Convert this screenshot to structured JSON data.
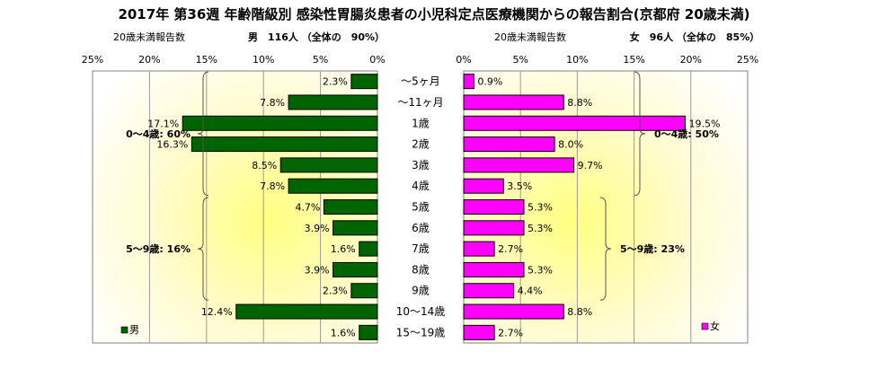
{
  "title": "2017年 第36週 年齢階級別 感染性胃腸炎患者の小児科定点医療機関からの報告割合(京都府 20歳未満)",
  "categories": [
    "～5ヶ月",
    "～11ヶ月",
    "1歳",
    "2歳",
    "3歳",
    "4歳",
    "5歳",
    "6歳",
    "7歳",
    "8歳",
    "9歳",
    "10～14歳",
    "15～19歳"
  ],
  "colors": {
    "male": "#006400",
    "female": "#ff00ff",
    "axis": "#808080"
  },
  "chart_data": {
    "type": "bar",
    "categories": [
      "～5ヶ月",
      "～11ヶ月",
      "1歳",
      "2歳",
      "3歳",
      "4歳",
      "5歳",
      "6歳",
      "7歳",
      "8歳",
      "9歳",
      "10～14歳",
      "15～19歳"
    ],
    "male": {
      "subtitle_label": "20歳未満報告数",
      "summary": "男　116人 （全体の　90%）",
      "legend": "男",
      "values": [
        2.3,
        7.8,
        17.1,
        16.3,
        8.5,
        7.8,
        4.7,
        3.9,
        1.6,
        3.9,
        2.3,
        12.4,
        1.6
      ],
      "ticks": [
        "25%",
        "20%",
        "15%",
        "10%",
        "5%",
        "0%"
      ],
      "xlim": [
        0,
        25
      ],
      "groups": [
        {
          "label": "0～4歳: 60%",
          "from": 0,
          "to": 5
        },
        {
          "label": "5～9歳: 16%",
          "from": 6,
          "to": 10
        }
      ]
    },
    "female": {
      "subtitle_label": "20歳未満報告数",
      "summary": "女　96人 （全体の　85%）",
      "legend": "女",
      "values": [
        0.9,
        8.8,
        19.5,
        8.0,
        9.7,
        3.5,
        5.3,
        5.3,
        2.7,
        5.3,
        4.4,
        8.8,
        2.7
      ],
      "ticks": [
        "0%",
        "5%",
        "10%",
        "15%",
        "20%",
        "25%"
      ],
      "xlim": [
        0,
        25
      ],
      "groups": [
        {
          "label": "0～4歳: 50%",
          "from": 0,
          "to": 5
        },
        {
          "label": "5～9歳: 23%",
          "from": 6,
          "to": 10
        }
      ]
    }
  }
}
